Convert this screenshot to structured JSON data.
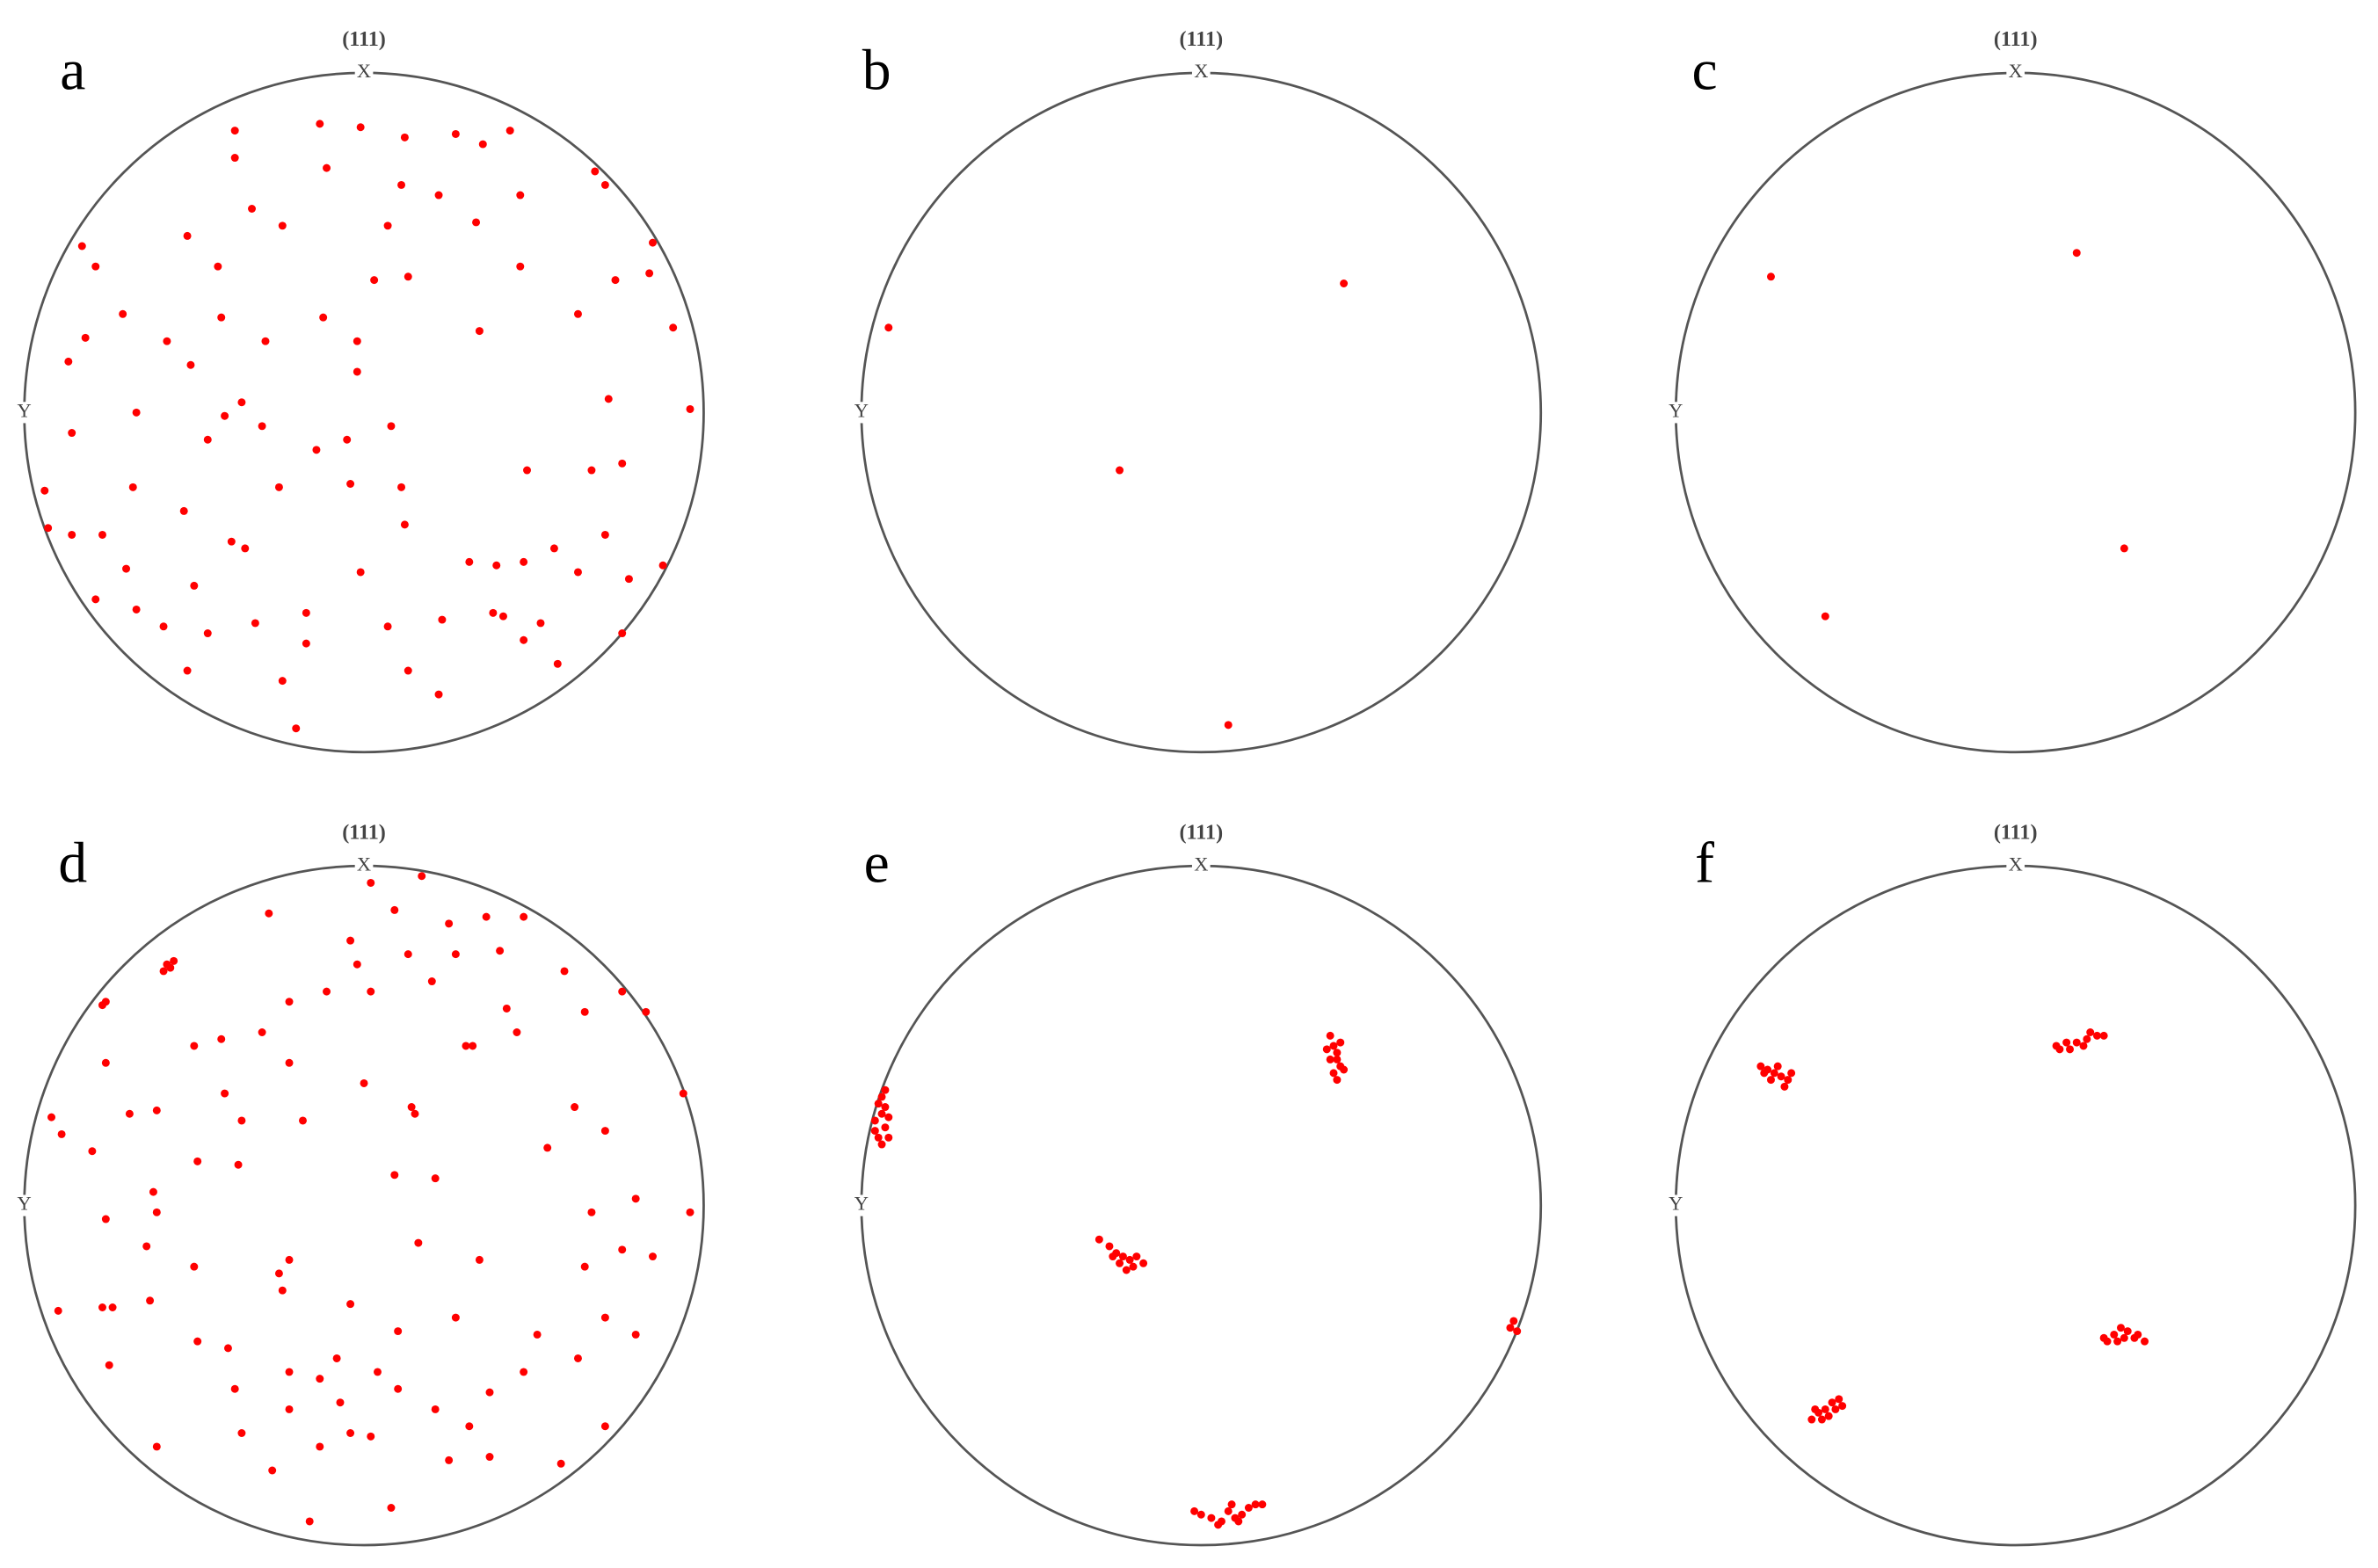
{
  "chart_data": [
    {
      "type": "scatter",
      "panel": "a",
      "title": "(111)",
      "x_label": "X",
      "y_label": "Y",
      "color": "#ff0000",
      "xlim": [
        -1,
        1
      ],
      "ylim": [
        -1,
        1
      ],
      "x": [
        -0.13,
        -0.38,
        -0.38,
        -0.01,
        0.12,
        0.27,
        0.35,
        0.43,
        -0.11,
        0.68,
        0.71,
        0.11,
        0.22,
        0.46,
        -0.24,
        -0.33,
        0.07,
        0.33,
        0.85,
        -0.52,
        -0.83,
        -0.79,
        -0.43,
        0.03,
        0.13,
        0.46,
        0.74,
        0.84,
        -0.12,
        -0.42,
        -0.71,
        0.34,
        0.63,
        0.91,
        -0.82,
        -0.58,
        -0.29,
        -0.02,
        -0.02,
        -0.51,
        -0.87,
        -0.36,
        -0.41,
        -0.67,
        -0.3,
        -0.46,
        -0.14,
        -0.05,
        0.08,
        0.72,
        0.96,
        -0.86,
        0.76,
        -0.94,
        -0.68,
        -0.25,
        -0.04,
        0.11,
        0.48,
        0.67,
        -0.53,
        -0.93,
        -0.86,
        0.12,
        -0.77,
        -0.39,
        -0.35,
        0.56,
        0.71,
        0.88,
        0.31,
        0.39,
        0.47,
        0.63,
        -0.01,
        -0.7,
        0.78,
        -0.79,
        -0.5,
        -0.32,
        -0.17,
        0.23,
        0.38,
        0.47,
        0.52,
        -0.67,
        -0.59,
        -0.46,
        0.57,
        0.76,
        -0.52,
        -0.17,
        0.07,
        -0.24,
        0.13,
        0.22,
        -0.2,
        0.41
      ],
      "y": [
        0.85,
        0.83,
        0.75,
        0.84,
        0.81,
        0.82,
        0.79,
        0.83,
        0.72,
        0.71,
        0.67,
        0.67,
        0.64,
        0.64,
        0.55,
        0.6,
        0.55,
        0.56,
        0.5,
        0.52,
        0.49,
        0.43,
        0.43,
        0.39,
        0.4,
        0.43,
        0.39,
        0.41,
        0.28,
        0.28,
        0.29,
        0.24,
        0.29,
        0.25,
        0.22,
        0.21,
        0.21,
        0.21,
        0.12,
        0.14,
        0.15,
        0.03,
        -0.01,
        0,
        -0.04,
        -0.08,
        -0.11,
        -0.08,
        -0.04,
        0.04,
        0.01,
        -0.06,
        -0.15,
        -0.23,
        -0.22,
        -0.22,
        -0.21,
        -0.22,
        -0.17,
        -0.17,
        -0.29,
        -0.34,
        -0.36,
        -0.33,
        -0.36,
        -0.38,
        -0.4,
        -0.4,
        -0.36,
        -0.45,
        -0.44,
        -0.45,
        -0.44,
        -0.47,
        -0.47,
        -0.46,
        -0.49,
        -0.55,
        -0.51,
        -0.62,
        -0.59,
        -0.61,
        -0.59,
        -0.67,
        -0.62,
        -0.58,
        -0.63,
        -0.65,
        -0.74,
        -0.65,
        -0.76,
        -0.68,
        -0.63,
        -0.79,
        -0.76,
        -0.83,
        -0.93,
        -0.6
      ]
    },
    {
      "type": "scatter",
      "panel": "b",
      "title": "(111)",
      "x_label": "X",
      "y_label": "Y",
      "color": "#ff0000",
      "xlim": [
        -1,
        1
      ],
      "ylim": [
        -1,
        1
      ],
      "x": [
        0.42,
        -0.92,
        -0.24,
        0.08
      ],
      "y": [
        0.38,
        0.25,
        -0.17,
        -0.92
      ]
    },
    {
      "type": "scatter",
      "panel": "c",
      "title": "(111)",
      "x_label": "X",
      "y_label": "Y",
      "color": "#ff0000",
      "xlim": [
        -1,
        1
      ],
      "ylim": [
        -1,
        1
      ],
      "x": [
        -0.72,
        0.18,
        0.32,
        -0.56
      ],
      "y": [
        0.4,
        0.47,
        -0.4,
        -0.6
      ]
    },
    {
      "type": "scatter",
      "panel": "d",
      "title": "(111)",
      "x_label": "X",
      "y_label": "Y",
      "color": "#ff0000",
      "xlim": [
        -1,
        1
      ],
      "ylim": [
        -1,
        1
      ],
      "x": [
        -0.58,
        -0.56,
        -0.59,
        -0.57,
        -0.77,
        -0.76,
        -0.28,
        0.02,
        0.17,
        0.09,
        0.25,
        0.36,
        0.47,
        -0.04,
        -0.02,
        0.13,
        0.27,
        0.4,
        0.59,
        0.76,
        0.83,
        -0.11,
        -0.22,
        0.02,
        0.2,
        0.42,
        0.45,
        0.3,
        0.32,
        0.65,
        -0.42,
        -0.5,
        -0.76,
        -0.22,
        -0.3,
        0,
        0.14,
        0.15,
        -0.41,
        -0.61,
        -0.69,
        -0.92,
        -0.89,
        -0.18,
        -0.36,
        0.62,
        0.71,
        0.94,
        -0.8,
        -0.62,
        -0.61,
        -0.49,
        -0.37,
        0.21,
        0.09,
        0.54,
        0.8,
        0.96,
        0.67,
        -0.76,
        -0.64,
        -0.5,
        -0.25,
        -0.22,
        -0.24,
        -0.04,
        0.16,
        0.34,
        0.76,
        0.85,
        0.65,
        -0.77,
        -0.74,
        -0.9,
        -0.63,
        0.1,
        0.27,
        0.51,
        0.71,
        0.8,
        -0.49,
        -0.4,
        -0.08,
        0.04,
        0.63,
        -0.22,
        -0.13,
        -0.75,
        -0.38,
        0.1,
        0.37,
        0.47,
        -0.07,
        -0.22,
        0.21,
        -0.36,
        -0.04,
        0.31,
        0.71,
        -0.61,
        -0.13,
        0.02,
        0.25,
        0.37,
        0.58,
        -0.27,
        0.08,
        -0.16
      ],
      "y": [
        0.71,
        0.72,
        0.69,
        0.7,
        0.59,
        0.6,
        0.86,
        0.95,
        0.97,
        0.87,
        0.83,
        0.85,
        0.85,
        0.78,
        0.71,
        0.74,
        0.74,
        0.75,
        0.69,
        0.63,
        0.57,
        0.63,
        0.6,
        0.63,
        0.66,
        0.58,
        0.51,
        0.47,
        0.47,
        0.57,
        0.49,
        0.47,
        0.42,
        0.42,
        0.51,
        0.36,
        0.29,
        0.27,
        0.33,
        0.28,
        0.27,
        0.26,
        0.21,
        0.25,
        0.25,
        0.29,
        0.22,
        0.33,
        0.16,
        0.04,
        -0.02,
        0.13,
        0.12,
        0.08,
        0.09,
        0.17,
        0.02,
        -0.02,
        -0.02,
        -0.04,
        -0.12,
        -0.18,
        -0.2,
        -0.16,
        -0.25,
        -0.29,
        -0.11,
        -0.16,
        -0.13,
        -0.15,
        -0.18,
        -0.3,
        -0.3,
        -0.31,
        -0.28,
        -0.37,
        -0.33,
        -0.38,
        -0.33,
        -0.38,
        -0.4,
        -0.42,
        -0.45,
        -0.49,
        -0.45,
        -0.49,
        -0.51,
        -0.47,
        -0.54,
        -0.54,
        -0.55,
        -0.49,
        -0.58,
        -0.6,
        -0.6,
        -0.67,
        -0.67,
        -0.65,
        -0.65,
        -0.71,
        -0.71,
        -0.68,
        -0.75,
        -0.74,
        -0.76,
        -0.78,
        -0.89,
        -0.93
      ]
    },
    {
      "type": "scatter",
      "panel": "e",
      "title": "(111)",
      "x_label": "X",
      "y_label": "Y",
      "color": "#ff0000",
      "xlim": [
        -1,
        1
      ],
      "ylim": [
        -1,
        1
      ],
      "x": [
        -0.95,
        -0.94,
        -0.96,
        -0.93,
        -0.95,
        -0.94,
        -0.92,
        -0.96,
        -0.93,
        -0.94,
        -0.93,
        -0.92,
        0.38,
        0.39,
        0.4,
        0.38,
        0.41,
        0.39,
        0.4,
        0.42,
        0.37,
        0.41,
        0.4,
        -0.3,
        -0.27,
        -0.25,
        -0.23,
        -0.21,
        -0.24,
        -0.2,
        -0.17,
        -0.22,
        -0.26,
        -0.19,
        0,
        0.03,
        0.06,
        0.08,
        0.1,
        0.12,
        0.14,
        0.16,
        0.18,
        0.11,
        0.05,
        0.09,
        -0.02,
        0.92,
        0.93,
        0.91
      ],
      "y": [
        0.3,
        0.27,
        0.25,
        0.23,
        0.2,
        0.32,
        0.26,
        0.22,
        0.29,
        0.18,
        0.34,
        0.2,
        0.5,
        0.47,
        0.45,
        0.43,
        0.41,
        0.39,
        0.37,
        0.4,
        0.46,
        0.48,
        0.43,
        -0.1,
        -0.12,
        -0.14,
        -0.15,
        -0.16,
        -0.17,
        -0.18,
        -0.17,
        -0.19,
        -0.15,
        -0.15,
        -0.91,
        -0.92,
        -0.93,
        -0.9,
        -0.92,
        -0.91,
        -0.89,
        -0.88,
        -0.88,
        -0.93,
        -0.94,
        -0.88,
        -0.9,
        -0.34,
        -0.37,
        -0.36
      ]
    },
    {
      "type": "scatter",
      "panel": "f",
      "title": "(111)",
      "x_label": "X",
      "y_label": "Y",
      "color": "#ff0000",
      "xlim": [
        -1,
        1
      ],
      "ylim": [
        -1,
        1
      ],
      "x": [
        -0.75,
        -0.73,
        -0.71,
        -0.69,
        -0.67,
        -0.7,
        -0.72,
        -0.68,
        -0.74,
        -0.66,
        0.12,
        0.15,
        0.18,
        0.21,
        0.24,
        0.16,
        0.2,
        0.13,
        0.22,
        0.26,
        0.26,
        0.29,
        0.32,
        0.35,
        0.38,
        0.3,
        0.33,
        0.27,
        0.36,
        0.31,
        -0.6,
        -0.58,
        -0.56,
        -0.54,
        -0.52,
        -0.57,
        -0.53,
        -0.59,
        -0.55,
        -0.51
      ],
      "y": [
        0.41,
        0.4,
        0.39,
        0.38,
        0.37,
        0.41,
        0.37,
        0.35,
        0.39,
        0.39,
        0.47,
        0.48,
        0.48,
        0.49,
        0.5,
        0.46,
        0.47,
        0.46,
        0.51,
        0.5,
        -0.39,
        -0.38,
        -0.39,
        -0.39,
        -0.4,
        -0.4,
        -0.37,
        -0.4,
        -0.38,
        -0.36,
        -0.63,
        -0.61,
        -0.6,
        -0.58,
        -0.57,
        -0.63,
        -0.6,
        -0.6,
        -0.62,
        -0.59
      ]
    }
  ]
}
